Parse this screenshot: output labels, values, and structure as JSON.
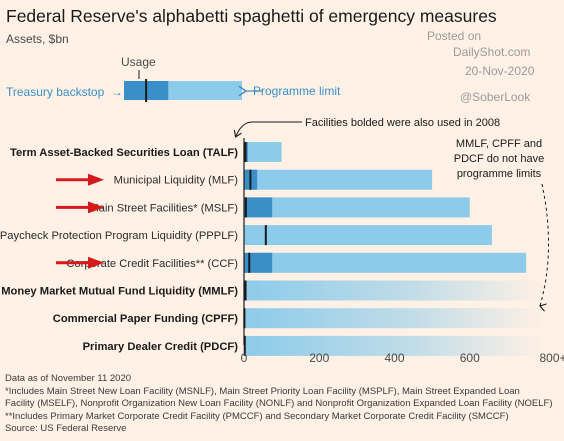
{
  "header": {
    "title": "Federal Reserve's alphabetti spaghetti of emergency measures",
    "subtitle": "Assets, $bn",
    "posted_on": "Posted on",
    "source_site": "DailyShot.com",
    "date": "20-Nov-2020",
    "handle": "@SoberLook"
  },
  "legend": {
    "usage_label": "Usage",
    "bar_label": "Treasury backstop",
    "limit_label": "Programme limit"
  },
  "annotations": {
    "bold_note": "Facilities bolded were also used in 2008",
    "no_limit_note": [
      "MMLF, CPFF and",
      "PDCF do not have",
      "programme limits"
    ]
  },
  "colors": {
    "background": "#fff1e5",
    "limit_bar": "#8ccbea",
    "usage_bar": "#3a8fc9",
    "usage_marker": "#1a1a1a",
    "arrow": "#d7191c"
  },
  "chart_data": {
    "type": "bar",
    "orientation": "horizontal",
    "xlim": [
      0,
      800
    ],
    "x_ticks": [
      "0",
      "200",
      "400",
      "600",
      "800+"
    ],
    "categories": [
      "Term Asset-Backed Securities Loan (TALF)",
      "Municipal Liquidity (MLF)",
      "Main Street Facilities* (MSLF)",
      "Paycheck Protection Program Liquidity (PPPLF)",
      "Corporate Credit Facilities** (CCF)",
      "Money Market Mutual Fund Liquidity (MMLF)",
      "Commercial Paper Funding (CPFF)",
      "Primary Dealer Credit (PDCF)"
    ],
    "bold": [
      true,
      false,
      false,
      false,
      false,
      true,
      true,
      true
    ],
    "highlighted": [
      false,
      true,
      true,
      false,
      true,
      false,
      false,
      false
    ],
    "series": [
      {
        "name": "Programme limit",
        "values": [
          100,
          500,
          600,
          659,
          750,
          null,
          null,
          null
        ]
      },
      {
        "name": "Treasury backstop",
        "values": [
          10,
          35,
          75,
          0,
          75,
          0,
          0,
          0
        ]
      },
      {
        "name": "Usage",
        "values": [
          4,
          17,
          5,
          58,
          14,
          4,
          1,
          2
        ]
      }
    ],
    "legend_example": {
      "usage": 60,
      "backstop": 120,
      "limit": 320
    }
  },
  "footer": {
    "notes": [
      "Data as of November 11 2020",
      "*Includes Main Street New Loan Facility (MSNLF), Main Street Priority Loan Facility (MSPLF), Main Street Expanded Loan",
      "Facility (MSELF), Nonprofit Organization New Loan Facility (NONLF) and Nonprofit Organization Expanded Loan Facility (NOELF)",
      "**Includes Primary Market Corporate Credit Facility (PMCCF) and Secondary Market Corporate Credit Facility (SMCCF)",
      "Source: US Federal Reserve"
    ]
  }
}
